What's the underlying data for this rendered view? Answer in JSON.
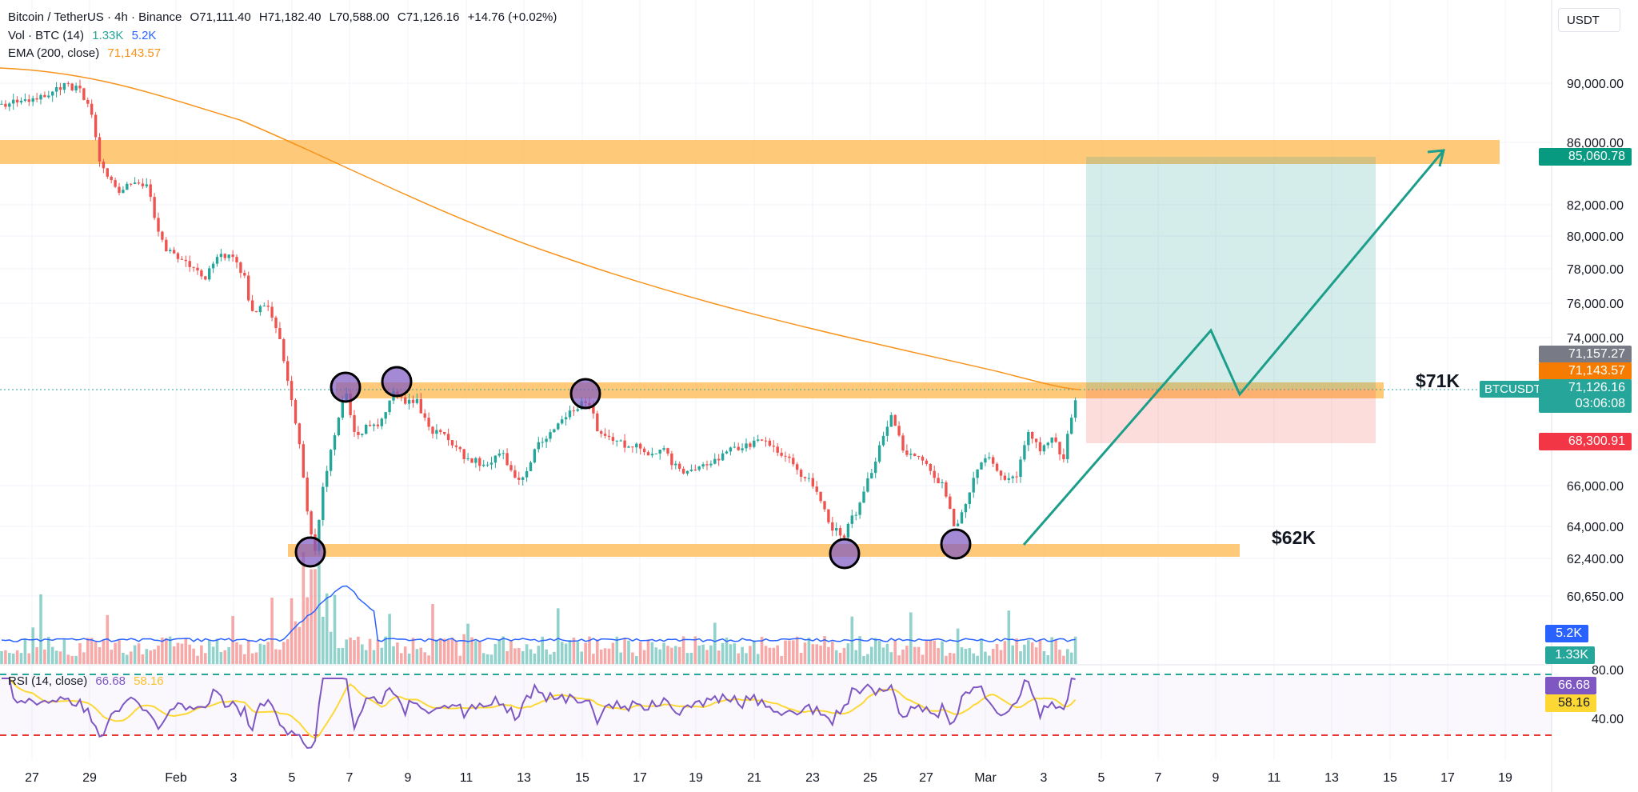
{
  "header": {
    "symbol": "Bitcoin / TetherUS · 4h · Binance",
    "open_label": "O",
    "open": "71,111.40",
    "high_label": "H",
    "high": "71,182.40",
    "low_label": "L",
    "low": "70,588.00",
    "close_label": "C",
    "close": "71,126.16",
    "change": "+14.76 (+0.02%)"
  },
  "indicators": {
    "vol_label": "Vol · BTC (14)",
    "vol_val1": "1.33K",
    "vol_val2": "5.2K",
    "ema_label": "EMA (200, close)",
    "ema_val": "71,143.57",
    "rsi_label": "RSI (14, close)",
    "rsi_val1": "66.68",
    "rsi_val2": "58.16"
  },
  "currency": "USDT",
  "price_axis": [
    "90,000.00",
    "86,000.00",
    "82,000.00",
    "80,000.00",
    "78,000.00",
    "76,000.00",
    "74,000.00",
    "66,000.00",
    "64,000.00",
    "62,400.00",
    "60,650.00"
  ],
  "rsi_axis": [
    "80.00",
    "40.00"
  ],
  "date_axis": [
    "27",
    "29",
    "Feb",
    "3",
    "5",
    "7",
    "9",
    "11",
    "13",
    "15",
    "17",
    "19",
    "21",
    "23",
    "25",
    "27",
    "Mar",
    "3",
    "5",
    "7",
    "9",
    "11",
    "13",
    "15",
    "17",
    "19"
  ],
  "tags": {
    "target": "85,060.78",
    "t1": "71,157.27",
    "ema": "71,143.57",
    "price": "71,126.16",
    "countdown": "03:06:08",
    "stop": "68,300.91",
    "vol_ma": "5.2K",
    "vol": "1.33K",
    "rsi1": "66.68",
    "rsi2": "58.16"
  },
  "symbol_tag": "BTCUSDT",
  "annotations": {
    "resistance": "$71K",
    "support": "$62K"
  },
  "colors": {
    "up": "#26a69a",
    "down": "#ef5350",
    "zone": "#ffb74d",
    "ema": "#f7931a",
    "rsi": "#7e57c2",
    "rsi_ma": "#fdd835",
    "vol_ma": "#2962ff"
  }
}
